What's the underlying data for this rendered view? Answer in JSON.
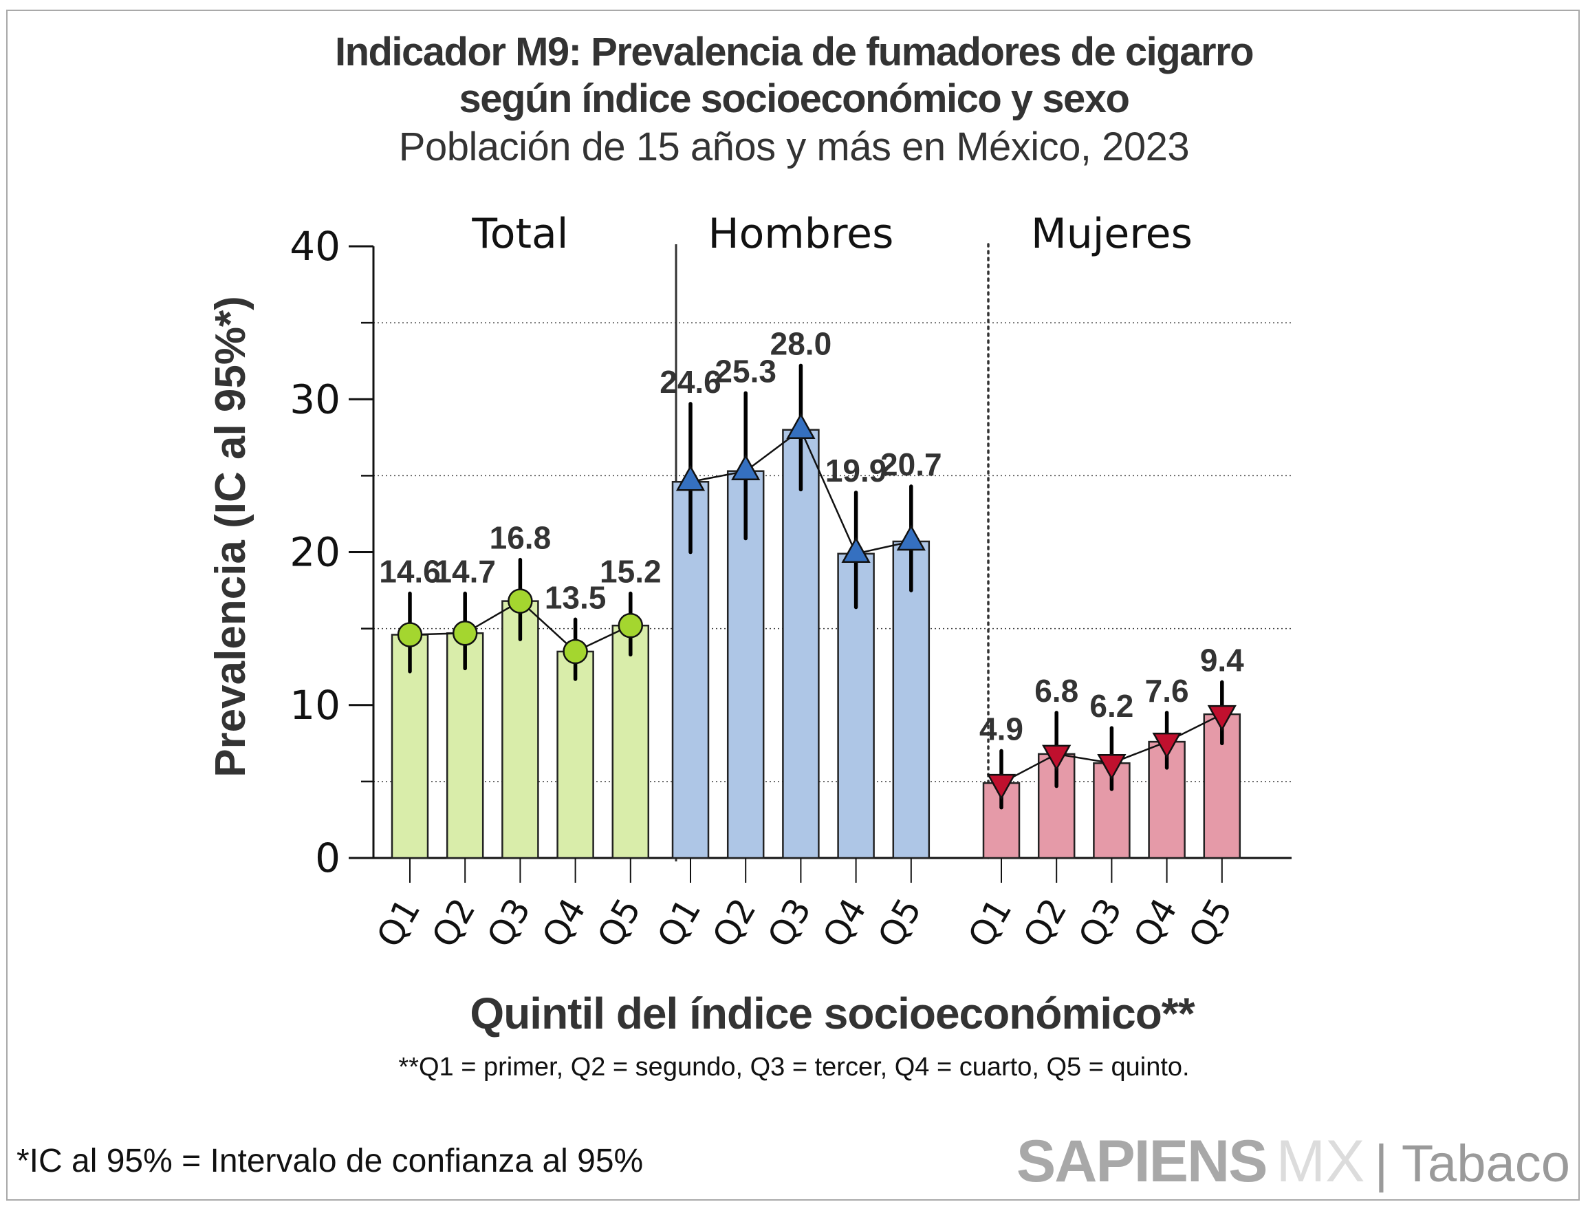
{
  "header": {
    "title_line1": "Indicador M9: Prevalencia de fumadores de cigarro",
    "title_line2": "según índice socioeconómico y sexo",
    "subtitle": "Población de 15 años y más en México, 2023"
  },
  "footer": {
    "quintile_note": "**Q1 = primer, Q2 = segundo, Q3 = tercer, Q4 = cuarto, Q5 = quinto.",
    "ic_note": "*IC al 95% = Intervalo de confianza al 95%",
    "brand_bold": "SAPIENS",
    "brand_light": "MX",
    "brand_section": "| Tabaco"
  },
  "chart_data": {
    "type": "bar",
    "title": "Indicador M9: Prevalencia de fumadores de cigarro según índice socioeconómico y sexo",
    "subtitle": "Población de 15 años y más en México, 2023",
    "xlabel": "Quintil del índice socioeconómico**",
    "ylabel": "Prevalencia (IC al 95%*)",
    "ylim": [
      0,
      40
    ],
    "yticks": [
      0,
      10,
      20,
      30,
      40
    ],
    "ytick_labels": [
      "0",
      "10",
      "20",
      "30",
      "40"
    ],
    "minor_gridlines": [
      5,
      15,
      25,
      35
    ],
    "grid": "dotted horizontal at 5, 15, 25, 35",
    "categories": [
      "Q1",
      "Q2",
      "Q3",
      "Q4",
      "Q5"
    ],
    "groups": [
      {
        "name": "Total",
        "marker": "circle",
        "bar_color": "#d9edaa",
        "marker_color": "#a4d62f",
        "values": [
          14.6,
          14.7,
          16.8,
          13.5,
          15.2
        ],
        "labels": [
          "14.6",
          "14.7",
          "16.8",
          "13.5",
          "15.2"
        ],
        "ci_low": [
          12.2,
          12.4,
          14.3,
          11.7,
          13.3
        ],
        "ci_high": [
          17.3,
          17.3,
          19.5,
          15.6,
          17.3
        ]
      },
      {
        "name": "Hombres",
        "marker": "triangle-up",
        "bar_color": "#aec6e6",
        "marker_color": "#3570c0",
        "values": [
          24.6,
          25.3,
          28.0,
          19.9,
          20.7
        ],
        "labels": [
          "24.6",
          "25.3",
          "28.0",
          "19.9",
          "20.7"
        ],
        "ci_low": [
          20.0,
          20.9,
          24.1,
          16.4,
          17.5
        ],
        "ci_high": [
          29.7,
          30.4,
          32.2,
          23.9,
          24.3
        ]
      },
      {
        "name": "Mujeres",
        "marker": "triangle-down",
        "bar_color": "#e59aa8",
        "marker_color": "#c0102e",
        "values": [
          4.9,
          6.8,
          6.2,
          7.6,
          9.4
        ],
        "labels": [
          "4.9",
          "6.8",
          "6.2",
          "7.6",
          "9.4"
        ],
        "ci_low": [
          3.3,
          4.7,
          4.5,
          5.9,
          7.5
        ],
        "ci_high": [
          7.0,
          9.5,
          8.5,
          9.5,
          11.5
        ]
      }
    ],
    "separators": [
      "solid",
      "dotted"
    ]
  }
}
